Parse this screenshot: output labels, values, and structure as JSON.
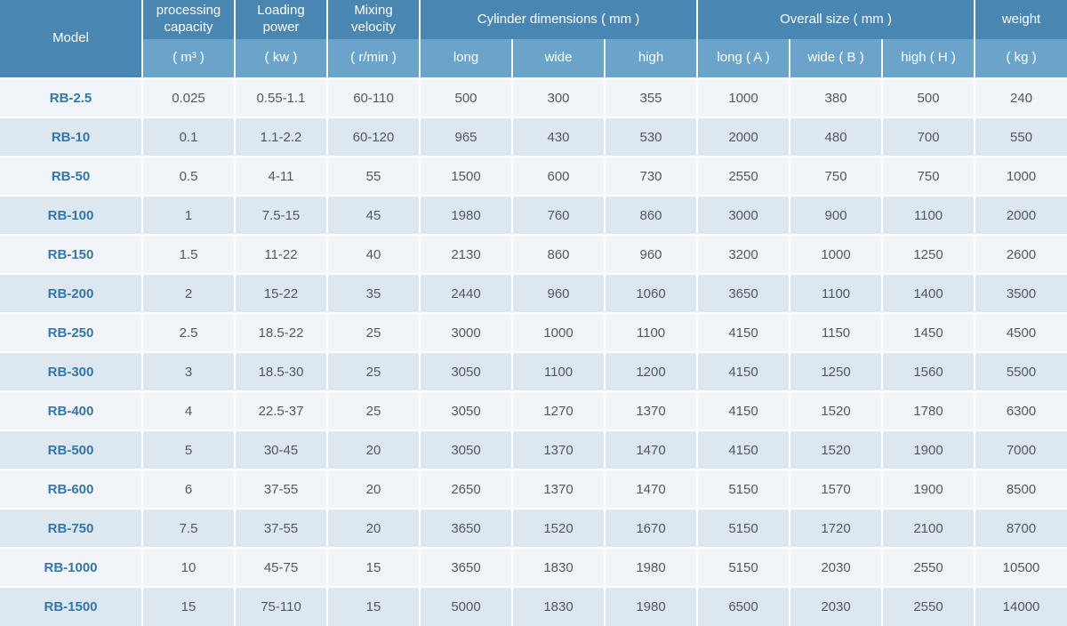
{
  "colors": {
    "header_dark": "#4a86b2",
    "header_light": "#6ba4ca",
    "row_light": "#f1f5f9",
    "row_alt": "#dde7f0",
    "model_text": "#3277a8",
    "value_text": "#54585c",
    "separator": "#ffffff"
  },
  "table": {
    "header": {
      "model": "Model",
      "capacity_label": "processing capacity",
      "capacity_unit": "( m³ )",
      "power_label": "Loading power",
      "power_unit": "( kw )",
      "velocity_label": "Mixing velocity",
      "velocity_unit": "( r/min )",
      "cylinder_label": "Cylinder dimensions ( mm )",
      "cylinder_sub": [
        "long",
        "wide",
        "high"
      ],
      "overall_label": "Overall size ( mm )",
      "overall_sub": [
        "long ( A )",
        "wide ( B )",
        "high ( H )"
      ],
      "weight_label": "weight",
      "weight_unit": "( kg )"
    },
    "rows": [
      {
        "model": "RB-2.5",
        "values": [
          "0.025",
          "0.55-1.1",
          "60-110",
          "500",
          "300",
          "355",
          "1000",
          "380",
          "500",
          "240"
        ]
      },
      {
        "model": "RB-10",
        "values": [
          "0.1",
          "1.1-2.2",
          "60-120",
          "965",
          "430",
          "530",
          "2000",
          "480",
          "700",
          "550"
        ]
      },
      {
        "model": "RB-50",
        "values": [
          "0.5",
          "4-11",
          "55",
          "1500",
          "600",
          "730",
          "2550",
          "750",
          "750",
          "1000"
        ]
      },
      {
        "model": "RB-100",
        "values": [
          "1",
          "7.5-15",
          "45",
          "1980",
          "760",
          "860",
          "3000",
          "900",
          "1100",
          "2000"
        ]
      },
      {
        "model": "RB-150",
        "values": [
          "1.5",
          "11-22",
          "40",
          "2130",
          "860",
          "960",
          "3200",
          "1000",
          "1250",
          "2600"
        ]
      },
      {
        "model": "RB-200",
        "values": [
          "2",
          "15-22",
          "35",
          "2440",
          "960",
          "1060",
          "3650",
          "1100",
          "1400",
          "3500"
        ]
      },
      {
        "model": "RB-250",
        "values": [
          "2.5",
          "18.5-22",
          "25",
          "3000",
          "1000",
          "1100",
          "4150",
          "1150",
          "1450",
          "4500"
        ]
      },
      {
        "model": "RB-300",
        "values": [
          "3",
          "18.5-30",
          "25",
          "3050",
          "1100",
          "1200",
          "4150",
          "1250",
          "1560",
          "5500"
        ]
      },
      {
        "model": "RB-400",
        "values": [
          "4",
          "22.5-37",
          "25",
          "3050",
          "1270",
          "1370",
          "4150",
          "1520",
          "1780",
          "6300"
        ]
      },
      {
        "model": "RB-500",
        "values": [
          "5",
          "30-45",
          "20",
          "3050",
          "1370",
          "1470",
          "4150",
          "1520",
          "1900",
          "7000"
        ]
      },
      {
        "model": "RB-600",
        "values": [
          "6",
          "37-55",
          "20",
          "2650",
          "1370",
          "1470",
          "5150",
          "1570",
          "1900",
          "8500"
        ]
      },
      {
        "model": "RB-750",
        "values": [
          "7.5",
          "37-55",
          "20",
          "3650",
          "1520",
          "1670",
          "5150",
          "1720",
          "2100",
          "8700"
        ]
      },
      {
        "model": "RB-1000",
        "values": [
          "10",
          "45-75",
          "15",
          "3650",
          "1830",
          "1980",
          "5150",
          "2030",
          "2550",
          "10500"
        ]
      },
      {
        "model": "RB-1500",
        "values": [
          "15",
          "75-110",
          "15",
          "5000",
          "1830",
          "1980",
          "6500",
          "2030",
          "2550",
          "14000"
        ]
      }
    ]
  }
}
